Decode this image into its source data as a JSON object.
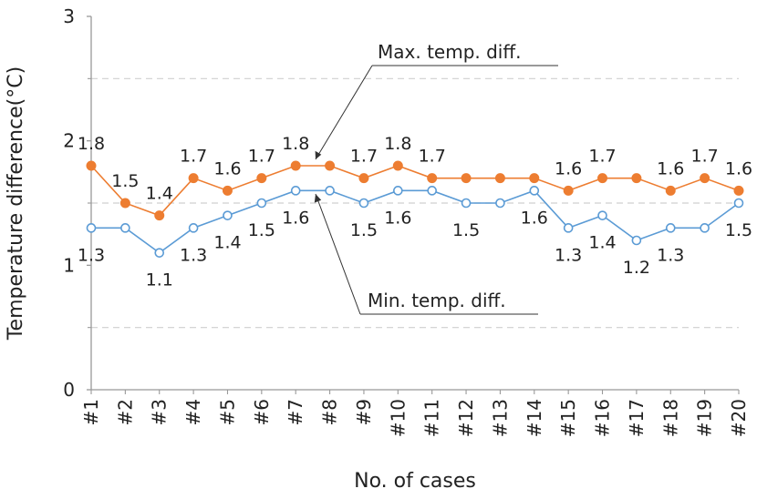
{
  "chart_data": {
    "type": "line",
    "title": "",
    "xlabel": "No. of cases",
    "ylabel": "Temperature difference(°C)",
    "ylim": [
      0,
      3
    ],
    "yticks": [
      "0",
      "1",
      "2",
      "3"
    ],
    "categories": [
      "#1",
      "#2",
      "#3",
      "#4",
      "#5",
      "#6",
      "#7",
      "#8",
      "#9",
      "#10",
      "#11",
      "#12",
      "#13",
      "#14",
      "#15",
      "#16",
      "#17",
      "#18",
      "#19",
      "#20"
    ],
    "series": [
      {
        "name": "Max. temp. diff.",
        "color": "#ED7D31",
        "marker": "filled-circle",
        "values": [
          1.8,
          1.5,
          1.4,
          1.7,
          1.6,
          1.7,
          1.8,
          1.8,
          1.7,
          1.8,
          1.7,
          1.7,
          1.7,
          1.7,
          1.6,
          1.7,
          1.7,
          1.6,
          1.7,
          1.6
        ],
        "labels": [
          "1.8",
          "1.5",
          "1.4",
          "1.7",
          "1.6",
          "1.7",
          "1.8",
          null,
          "1.7",
          "1.8",
          "1.7",
          null,
          null,
          null,
          "1.6",
          "1.7",
          null,
          "1.6",
          "1.7",
          "1.6"
        ]
      },
      {
        "name": "Min. temp. diff.",
        "color": "#5B9BD5",
        "marker": "open-circle",
        "values": [
          1.3,
          1.3,
          1.1,
          1.3,
          1.4,
          1.5,
          1.6,
          1.6,
          1.5,
          1.6,
          1.6,
          1.5,
          1.5,
          1.6,
          1.3,
          1.4,
          1.2,
          1.3,
          1.3,
          1.5
        ],
        "labels": [
          "1.3",
          null,
          "1.1",
          "1.3",
          "1.4",
          "1.5",
          "1.6",
          null,
          "1.5",
          "1.6",
          null,
          "1.5",
          null,
          "1.6",
          "1.3",
          "1.4",
          "1.2",
          "1.3",
          null,
          "1.5"
        ]
      }
    ],
    "annotations": [
      {
        "text": "Max. temp. diff.",
        "series": 0
      },
      {
        "text": "Min. temp. diff.",
        "series": 1
      }
    ],
    "gridlines": {
      "style": "dashed",
      "color": "#CFCFCF",
      "values": [
        0.5,
        1.5,
        2.5
      ]
    }
  }
}
